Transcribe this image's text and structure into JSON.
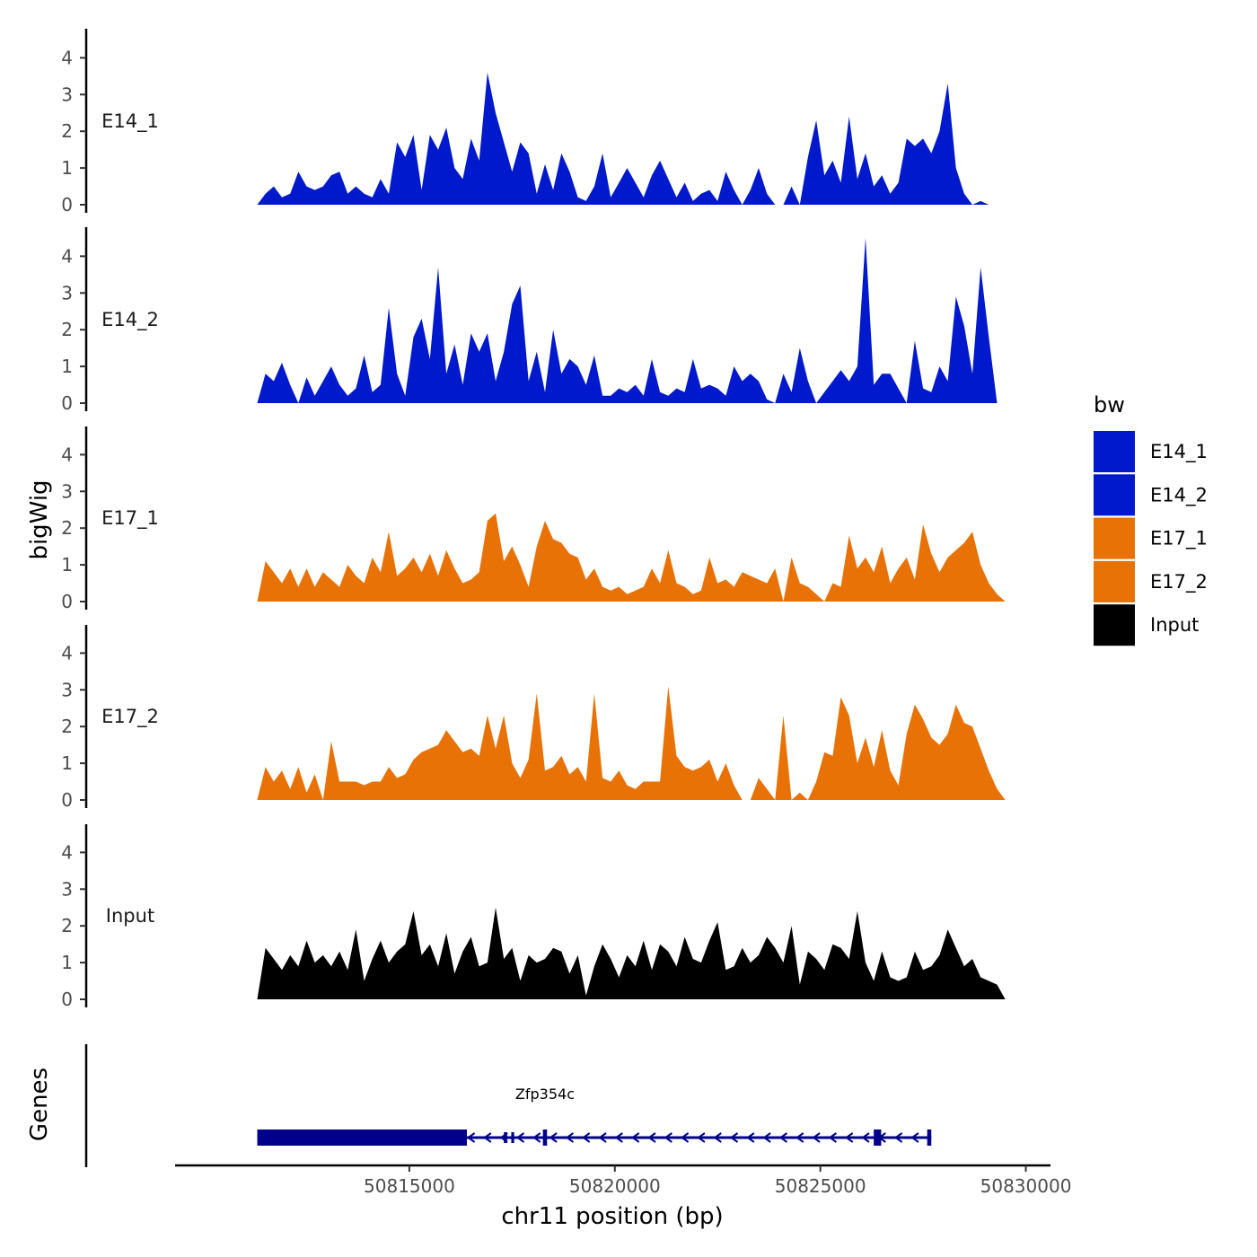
{
  "chart_data": {
    "type": "area",
    "chromosome": "chr11",
    "xlabel": "chr11 position (bp)",
    "ylabel": "bigWig",
    "gene_track_label": "Genes",
    "xlim": [
      50809300,
      50830600
    ],
    "x_ticks": [
      50815000,
      50820000,
      50825000,
      50830000
    ],
    "x_tick_labels": [
      "50815000",
      "50820000",
      "50825000",
      "50830000"
    ],
    "ylim": [
      0,
      4.7
    ],
    "y_ticks": [
      0,
      1,
      2,
      3,
      4
    ],
    "y_tick_labels": [
      "0",
      "1",
      "2",
      "3",
      "4"
    ],
    "legend": {
      "title": "bw",
      "entries": [
        {
          "label": "E14_1",
          "color": "#0019CC"
        },
        {
          "label": "E14_2",
          "color": "#0019CC"
        },
        {
          "label": "E17_1",
          "color": "#E87205"
        },
        {
          "label": "E17_2",
          "color": "#E87205"
        },
        {
          "label": "Input",
          "color": "#000000"
        }
      ]
    },
    "series": [
      {
        "name": "E14_1",
        "color": "#0019CC",
        "x": [
          50811300,
          50811500,
          50811700,
          50811900,
          50812100,
          50812300,
          50812500,
          50812700,
          50812900,
          50813100,
          50813300,
          50813500,
          50813700,
          50813900,
          50814100,
          50814300,
          50814500,
          50814700,
          50814900,
          50815100,
          50815300,
          50815500,
          50815700,
          50815900,
          50816100,
          50816300,
          50816500,
          50816700,
          50816900,
          50817100,
          50817300,
          50817500,
          50817700,
          50817900,
          50818100,
          50818300,
          50818500,
          50818700,
          50818900,
          50819100,
          50819300,
          50819500,
          50819700,
          50819900,
          50820100,
          50820300,
          50820500,
          50820700,
          50820900,
          50821100,
          50821300,
          50821500,
          50821700,
          50821900,
          50822100,
          50822300,
          50822500,
          50822700,
          50822900,
          50823100,
          50823300,
          50823500,
          50823700,
          50823900,
          50824100,
          50824300,
          50824500,
          50824700,
          50824900,
          50825100,
          50825300,
          50825500,
          50825700,
          50825900,
          50826100,
          50826300,
          50826500,
          50826700,
          50826900,
          50827100,
          50827300,
          50827500,
          50827700,
          50827900,
          50828100,
          50828300,
          50828500,
          50828700,
          50828900,
          50829100,
          50829300,
          50829500
        ],
        "y": [
          0,
          0.3,
          0.5,
          0.2,
          0.3,
          0.9,
          0.5,
          0.4,
          0.5,
          0.8,
          0.9,
          0.3,
          0.5,
          0.3,
          0.2,
          0.7,
          0.3,
          1.7,
          1.3,
          1.9,
          0.4,
          1.9,
          1.5,
          2.1,
          1.0,
          0.7,
          1.8,
          1.2,
          3.6,
          2.5,
          1.7,
          0.9,
          1.7,
          1.4,
          0.3,
          1.1,
          0.4,
          1.4,
          0.9,
          0.2,
          0.1,
          0.5,
          1.4,
          0.2,
          0.6,
          1.0,
          0.6,
          0.2,
          0.8,
          1.2,
          0.7,
          0.2,
          0.6,
          0.1,
          0.3,
          0.4,
          0.1,
          0.9,
          0.4,
          0,
          0.4,
          1.0,
          0.3,
          0,
          0,
          0.5,
          0,
          1.3,
          2.3,
          0.8,
          1.2,
          0.6,
          2.4,
          0.7,
          1.4,
          0.5,
          0.8,
          0.3,
          0.6,
          1.8,
          1.6,
          1.8,
          1.4,
          2.0,
          3.3,
          1.0,
          0.3,
          0,
          0.1,
          0,
          0,
          0
        ]
      },
      {
        "name": "E14_2",
        "color": "#0019CC",
        "x": [
          50811300,
          50811500,
          50811700,
          50811900,
          50812100,
          50812300,
          50812500,
          50812700,
          50812900,
          50813100,
          50813300,
          50813500,
          50813700,
          50813900,
          50814100,
          50814300,
          50814500,
          50814700,
          50814900,
          50815100,
          50815300,
          50815500,
          50815700,
          50815900,
          50816100,
          50816300,
          50816500,
          50816700,
          50816900,
          50817100,
          50817300,
          50817500,
          50817700,
          50817900,
          50818100,
          50818300,
          50818500,
          50818700,
          50818900,
          50819100,
          50819300,
          50819500,
          50819700,
          50819900,
          50820100,
          50820300,
          50820500,
          50820700,
          50820900,
          50821100,
          50821300,
          50821500,
          50821700,
          50821900,
          50822100,
          50822300,
          50822500,
          50822700,
          50822900,
          50823100,
          50823300,
          50823500,
          50823700,
          50823900,
          50824100,
          50824300,
          50824500,
          50824700,
          50824900,
          50825100,
          50825300,
          50825500,
          50825700,
          50825900,
          50826100,
          50826300,
          50826500,
          50826700,
          50826900,
          50827100,
          50827300,
          50827500,
          50827700,
          50827900,
          50828100,
          50828300,
          50828500,
          50828700,
          50828900,
          50829100,
          50829300,
          50829500
        ],
        "y": [
          0,
          0.8,
          0.6,
          1.1,
          0.5,
          0,
          0.7,
          0.2,
          0.6,
          1.0,
          0.5,
          0.2,
          0.4,
          1.3,
          0.3,
          0.5,
          2.6,
          0.8,
          0.2,
          1.8,
          2.3,
          1.2,
          3.7,
          0.8,
          1.6,
          0.5,
          1.9,
          1.4,
          1.9,
          0.6,
          1.4,
          2.7,
          3.2,
          0.6,
          1.4,
          0.3,
          2.0,
          0.8,
          1.2,
          1.0,
          0.5,
          1.3,
          0.2,
          0.2,
          0.4,
          0.3,
          0.5,
          0.2,
          1.2,
          0.3,
          0.2,
          0.4,
          0.3,
          1.2,
          0.4,
          0.5,
          0.4,
          0.2,
          1.0,
          0.6,
          0.8,
          0.6,
          0.1,
          0,
          0.8,
          0.3,
          1.5,
          0.6,
          0,
          0.3,
          0.6,
          0.9,
          0.6,
          1.0,
          4.5,
          0.5,
          0.8,
          0.8,
          0.4,
          0,
          1.7,
          0.4,
          0.3,
          1.0,
          0.6,
          2.9,
          2.1,
          0.8,
          3.7,
          1.8,
          0,
          0
        ]
      },
      {
        "name": "E17_1",
        "color": "#E87205",
        "x": [
          50811300,
          50811500,
          50811700,
          50811900,
          50812100,
          50812300,
          50812500,
          50812700,
          50812900,
          50813100,
          50813300,
          50813500,
          50813700,
          50813900,
          50814100,
          50814300,
          50814500,
          50814700,
          50814900,
          50815100,
          50815300,
          50815500,
          50815700,
          50815900,
          50816100,
          50816300,
          50816500,
          50816700,
          50816900,
          50817100,
          50817300,
          50817500,
          50817700,
          50817900,
          50818100,
          50818300,
          50818500,
          50818700,
          50818900,
          50819100,
          50819300,
          50819500,
          50819700,
          50819900,
          50820100,
          50820300,
          50820500,
          50820700,
          50820900,
          50821100,
          50821300,
          50821500,
          50821700,
          50821900,
          50822100,
          50822300,
          50822500,
          50822700,
          50822900,
          50823100,
          50823300,
          50823500,
          50823700,
          50823900,
          50824100,
          50824300,
          50824500,
          50824700,
          50824900,
          50825100,
          50825300,
          50825500,
          50825700,
          50825900,
          50826100,
          50826300,
          50826500,
          50826700,
          50826900,
          50827100,
          50827300,
          50827500,
          50827700,
          50827900,
          50828100,
          50828300,
          50828500,
          50828700,
          50828900,
          50829100,
          50829300,
          50829500
        ],
        "y": [
          0,
          1.1,
          0.8,
          0.5,
          0.9,
          0.4,
          0.9,
          0.4,
          0.8,
          0.6,
          0.4,
          1.0,
          0.7,
          0.5,
          1.2,
          0.8,
          1.9,
          0.7,
          0.9,
          1.2,
          0.8,
          1.3,
          0.7,
          1.4,
          0.9,
          0.5,
          0.6,
          0.8,
          2.2,
          2.4,
          1.1,
          1.5,
          1.0,
          0.4,
          1.5,
          2.2,
          1.7,
          1.6,
          1.3,
          1.2,
          0.6,
          0.9,
          0.4,
          0.3,
          0.4,
          0.2,
          0.3,
          0.4,
          0.9,
          0.5,
          1.4,
          0.5,
          0.4,
          0.2,
          0.3,
          1.2,
          0.5,
          0.6,
          0.4,
          0.8,
          0.7,
          0.6,
          0.5,
          0.9,
          0,
          1.2,
          0.5,
          0.4,
          0.2,
          0,
          0.5,
          0.4,
          1.8,
          0.9,
          1.2,
          0.8,
          1.5,
          0.5,
          0.9,
          1.2,
          0.6,
          2.1,
          1.3,
          0.8,
          1.2,
          1.4,
          1.6,
          1.9,
          1.0,
          0.5,
          0.2,
          0
        ]
      },
      {
        "name": "E17_2",
        "color": "#E87205",
        "x": [
          50811300,
          50811500,
          50811700,
          50811900,
          50812100,
          50812300,
          50812500,
          50812700,
          50812900,
          50813100,
          50813300,
          50813500,
          50813700,
          50813900,
          50814100,
          50814300,
          50814500,
          50814700,
          50814900,
          50815100,
          50815300,
          50815500,
          50815700,
          50815900,
          50816100,
          50816300,
          50816500,
          50816700,
          50816900,
          50817100,
          50817300,
          50817500,
          50817700,
          50817900,
          50818100,
          50818300,
          50818500,
          50818700,
          50818900,
          50819100,
          50819300,
          50819500,
          50819700,
          50819900,
          50820100,
          50820300,
          50820500,
          50820700,
          50820900,
          50821100,
          50821300,
          50821500,
          50821700,
          50821900,
          50822100,
          50822300,
          50822500,
          50822700,
          50822900,
          50823100,
          50823300,
          50823500,
          50823700,
          50823900,
          50824100,
          50824300,
          50824500,
          50824700,
          50824900,
          50825100,
          50825300,
          50825500,
          50825700,
          50825900,
          50826100,
          50826300,
          50826500,
          50826700,
          50826900,
          50827100,
          50827300,
          50827500,
          50827700,
          50827900,
          50828100,
          50828300,
          50828500,
          50828700,
          50828900,
          50829100,
          50829300,
          50829500
        ],
        "y": [
          0,
          0.9,
          0.5,
          0.8,
          0.3,
          0.9,
          0.2,
          0.7,
          0,
          1.6,
          0.5,
          0.5,
          0.5,
          0.4,
          0.5,
          0.5,
          0.9,
          0.6,
          0.7,
          1.1,
          1.3,
          1.4,
          1.5,
          1.9,
          1.6,
          1.3,
          1.4,
          1.2,
          2.3,
          1.4,
          2.3,
          1.0,
          0.6,
          1.1,
          2.9,
          0.8,
          0.9,
          1.2,
          0.7,
          0.9,
          0.5,
          2.9,
          0.6,
          0.5,
          0.8,
          0.4,
          0.3,
          0.5,
          0.5,
          0.5,
          3.1,
          1.2,
          0.9,
          0.8,
          0.9,
          1.1,
          0.5,
          1.0,
          0.4,
          0,
          0,
          0.6,
          0.3,
          0,
          2.3,
          0,
          0.2,
          0,
          0.5,
          1.3,
          1.2,
          2.8,
          2.3,
          1.0,
          1.7,
          0.9,
          1.9,
          0.8,
          0.4,
          1.8,
          2.6,
          2.2,
          1.7,
          1.5,
          1.8,
          2.6,
          2.1,
          2.0,
          1.4,
          0.8,
          0.3,
          0
        ]
      },
      {
        "name": "Input",
        "color": "#000000",
        "x": [
          50811300,
          50811500,
          50811700,
          50811900,
          50812100,
          50812300,
          50812500,
          50812700,
          50812900,
          50813100,
          50813300,
          50813500,
          50813700,
          50813900,
          50814100,
          50814300,
          50814500,
          50814700,
          50814900,
          50815100,
          50815300,
          50815500,
          50815700,
          50815900,
          50816100,
          50816300,
          50816500,
          50816700,
          50816900,
          50817100,
          50817300,
          50817500,
          50817700,
          50817900,
          50818100,
          50818300,
          50818500,
          50818700,
          50818900,
          50819100,
          50819300,
          50819500,
          50819700,
          50819900,
          50820100,
          50820300,
          50820500,
          50820700,
          50820900,
          50821100,
          50821300,
          50821500,
          50821700,
          50821900,
          50822100,
          50822300,
          50822500,
          50822700,
          50822900,
          50823100,
          50823300,
          50823500,
          50823700,
          50823900,
          50824100,
          50824300,
          50824500,
          50824700,
          50824900,
          50825100,
          50825300,
          50825500,
          50825700,
          50825900,
          50826100,
          50826300,
          50826500,
          50826700,
          50826900,
          50827100,
          50827300,
          50827500,
          50827700,
          50827900,
          50828100,
          50828300,
          50828500,
          50828700,
          50828900,
          50829100,
          50829300,
          50829500
        ],
        "y": [
          0,
          1.4,
          1.1,
          0.8,
          1.2,
          0.9,
          1.6,
          1.0,
          1.2,
          0.9,
          1.3,
          0.8,
          1.9,
          0.5,
          1.1,
          1.6,
          1.0,
          1.3,
          1.5,
          2.4,
          1.2,
          1.5,
          0.9,
          1.8,
          0.7,
          1.3,
          1.7,
          0.9,
          1.0,
          2.5,
          1.1,
          1.4,
          0.5,
          1.2,
          1.0,
          1.1,
          1.4,
          1.3,
          0.7,
          1.2,
          0.1,
          0.9,
          1.5,
          1.1,
          0.6,
          1.2,
          0.9,
          1.6,
          0.8,
          1.5,
          1.3,
          0.9,
          1.7,
          1.1,
          1.0,
          1.6,
          2.1,
          0.8,
          0.9,
          1.4,
          1.0,
          1.2,
          1.7,
          1.4,
          1.0,
          2.0,
          0.4,
          1.3,
          1.1,
          0.8,
          1.5,
          1.4,
          1.1,
          2.4,
          1.0,
          0.5,
          1.3,
          0.6,
          0.5,
          0.6,
          1.3,
          0.8,
          0.9,
          1.2,
          1.9,
          1.4,
          0.9,
          1.1,
          0.6,
          0.5,
          0.4,
          0
        ]
      }
    ],
    "gene": {
      "name": "Zfp354c",
      "color": "#00008B",
      "start": 50811300,
      "end": 50827700,
      "strand": "-",
      "exons": [
        {
          "start": 50811300,
          "end": 50816400,
          "height": "full"
        },
        {
          "start": 50818250,
          "end": 50818350,
          "height": "full"
        },
        {
          "start": 50817300,
          "end": 50817380,
          "height": "narrow"
        },
        {
          "start": 50817480,
          "end": 50817550,
          "height": "narrow"
        },
        {
          "start": 50826300,
          "end": 50826480,
          "height": "full"
        },
        {
          "start": 50827600,
          "end": 50827700,
          "height": "full"
        }
      ]
    }
  }
}
